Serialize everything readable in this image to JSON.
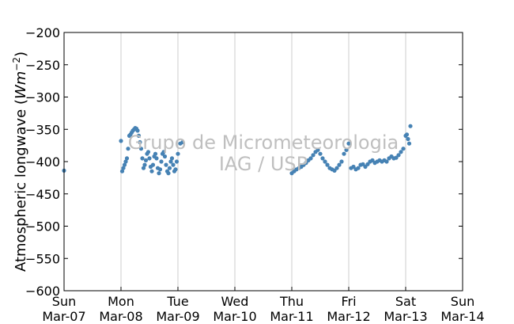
{
  "chart_data": {
    "type": "scatter",
    "title": "",
    "ylabel": "Atmospheric longwave (",
    "ylabel_math_base": "Wm",
    "ylabel_math_exp": "−2",
    "ylabel_close": ")",
    "xlabel": "",
    "ylim": [
      -600,
      -200
    ],
    "yticks": [
      "−200",
      "−250",
      "−300",
      "−350",
      "−400",
      "−450",
      "−500",
      "−550",
      "−600"
    ],
    "ytick_values": [
      -200,
      -250,
      -300,
      -350,
      -400,
      -450,
      -500,
      -550,
      -600
    ],
    "xlim": [
      "Mar-07 00:00",
      "Mar-14 00:00"
    ],
    "xticks": [
      {
        "day": "Sun",
        "date": "Mar-07"
      },
      {
        "day": "Mon",
        "date": "Mar-08"
      },
      {
        "day": "Tue",
        "date": "Mar-09"
      },
      {
        "day": "Wed",
        "date": "Mar-10"
      },
      {
        "day": "Thu",
        "date": "Mar-11"
      },
      {
        "day": "Fri",
        "date": "Mar-12"
      },
      {
        "day": "Sat",
        "date": "Mar-13"
      },
      {
        "day": "Sun",
        "date": "Mar-14"
      }
    ],
    "grid": "vertical",
    "marker_color": "#4682b4",
    "series": [
      {
        "x": [
          "Mar-07 00:00",
          "Mar-08 00:00",
          "Mar-08 00:30",
          "Mar-08 01:00",
          "Mar-08 01:30",
          "Mar-08 02:00",
          "Mar-08 02:30",
          "Mar-08 03:00",
          "Mar-08 03:30",
          "Mar-08 04:00",
          "Mar-08 04:30",
          "Mar-08 05:00",
          "Mar-08 05:30",
          "Mar-08 06:00",
          "Mar-08 06:30",
          "Mar-08 07:00",
          "Mar-08 07:30",
          "Mar-08 08:00",
          "Mar-08 08:30",
          "Mar-08 09:00",
          "Mar-08 09:30",
          "Mar-08 10:00",
          "Mar-08 10:30",
          "Mar-08 11:00",
          "Mar-08 11:30",
          "Mar-08 12:00",
          "Mar-08 12:30",
          "Mar-08 13:00",
          "Mar-08 13:30",
          "Mar-08 14:00",
          "Mar-08 14:30",
          "Mar-08 15:00",
          "Mar-08 15:30",
          "Mar-08 16:00",
          "Mar-08 16:30",
          "Mar-08 17:00",
          "Mar-08 17:30",
          "Mar-08 18:00",
          "Mar-08 18:30",
          "Mar-08 19:00",
          "Mar-08 19:30",
          "Mar-08 20:00",
          "Mar-08 20:30",
          "Mar-08 21:00",
          "Mar-08 21:30",
          "Mar-08 22:00",
          "Mar-08 22:30",
          "Mar-08 23:00",
          "Mar-08 23:30",
          "Mar-09 00:00",
          "Mar-09 01:00",
          "Mar-09 02:00",
          "Mar-11 00:00",
          "Mar-11 01:00",
          "Mar-11 02:00",
          "Mar-11 03:00",
          "Mar-11 04:00",
          "Mar-11 05:00",
          "Mar-11 06:00",
          "Mar-11 07:00",
          "Mar-11 08:00",
          "Mar-11 09:00",
          "Mar-11 10:00",
          "Mar-11 11:00",
          "Mar-11 12:00",
          "Mar-11 13:00",
          "Mar-11 14:00",
          "Mar-11 15:00",
          "Mar-11 16:00",
          "Mar-11 17:00",
          "Mar-11 18:00",
          "Mar-11 19:00",
          "Mar-11 20:00",
          "Mar-11 21:00",
          "Mar-11 22:00",
          "Mar-11 23:00",
          "Mar-12 00:00",
          "Mar-12 01:00",
          "Mar-12 02:00",
          "Mar-12 03:00",
          "Mar-12 04:00",
          "Mar-12 05:00",
          "Mar-12 06:00",
          "Mar-12 07:00",
          "Mar-12 08:00",
          "Mar-12 09:00",
          "Mar-12 10:00",
          "Mar-12 11:00",
          "Mar-12 12:00",
          "Mar-12 13:00",
          "Mar-12 14:00",
          "Mar-12 15:00",
          "Mar-12 16:00",
          "Mar-12 17:00",
          "Mar-12 18:00",
          "Mar-12 19:00",
          "Mar-12 20:00",
          "Mar-12 21:00",
          "Mar-12 22:00",
          "Mar-12 23:00",
          "Mar-13 00:00",
          "Mar-13 00:30",
          "Mar-13 01:00",
          "Mar-13 01:30",
          "Mar-13 02:00"
        ],
        "y": [
          -414,
          -368,
          -415,
          -410,
          -405,
          -400,
          -395,
          -380,
          -360,
          -358,
          -355,
          -352,
          -350,
          -348,
          -349,
          -352,
          -360,
          -370,
          -380,
          -395,
          -410,
          -405,
          -398,
          -388,
          -385,
          -395,
          -408,
          -415,
          -405,
          -392,
          -388,
          -395,
          -410,
          -418,
          -412,
          -400,
          -388,
          -385,
          -392,
          -405,
          -415,
          -418,
          -410,
          -400,
          -395,
          -405,
          -415,
          -412,
          -400,
          -388,
          -372,
          -370,
          -418,
          -415,
          -412,
          -410,
          -408,
          -405,
          -402,
          -398,
          -395,
          -390,
          -385,
          -382,
          -388,
          -395,
          -400,
          -405,
          -410,
          -412,
          -414,
          -410,
          -405,
          -400,
          -388,
          -382,
          -372,
          -410,
          -408,
          -412,
          -410,
          -405,
          -404,
          -408,
          -404,
          -400,
          -398,
          -402,
          -400,
          -398,
          -400,
          -398,
          -400,
          -395,
          -392,
          -395,
          -394,
          -390,
          -385,
          -380,
          -360,
          -358,
          -365,
          -372,
          -345
        ]
      }
    ]
  },
  "watermark": {
    "line1": "Grupo de Micrometeorologia",
    "line2": "IAG / USP"
  }
}
